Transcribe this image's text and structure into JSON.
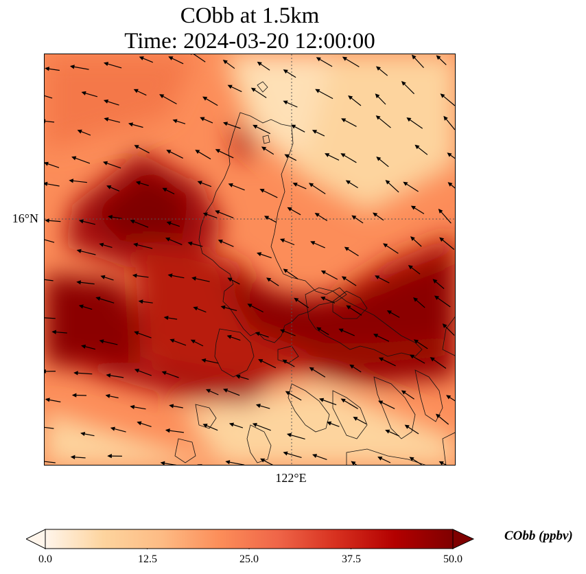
{
  "title": {
    "line1": "CObb at 1.5km",
    "line2": "Time: 2024-03-20 12:00:00"
  },
  "axes": {
    "lat_label": "16°N",
    "lon_label": "122°E"
  },
  "colorbar": {
    "label": "CObb (ppbv)",
    "min": 0.0,
    "max": 50.0,
    "ticks": [
      "0.0",
      "12.5",
      "25.0",
      "37.5",
      "50.0"
    ],
    "colors": [
      "#fff5eb",
      "#fdd49e",
      "#fdbb84",
      "#fc8d59",
      "#ef6548",
      "#d7301f",
      "#b30000",
      "#7f0000"
    ]
  }
}
